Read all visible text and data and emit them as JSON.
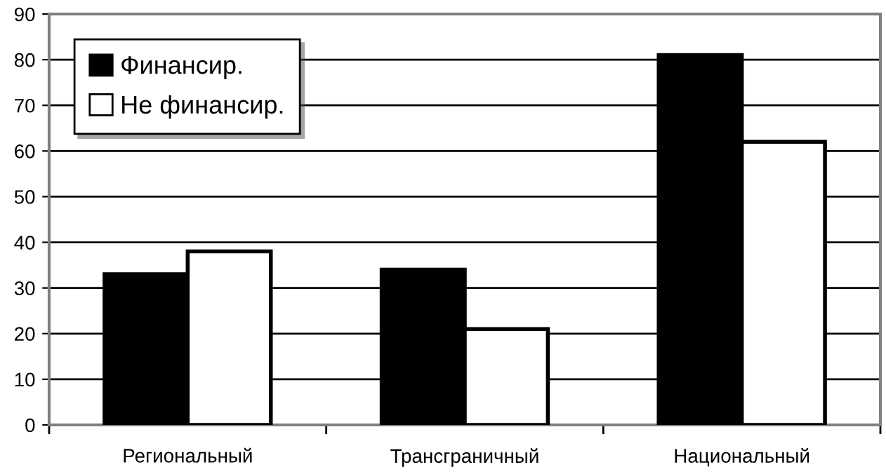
{
  "chart_data": {
    "type": "bar",
    "categories": [
      "Региональный",
      "Трансграничный",
      "Национальный"
    ],
    "series": [
      {
        "name": "Финансир.",
        "color": "#000000",
        "values": [
          33,
          34,
          81
        ]
      },
      {
        "name": "Не финансир.",
        "color": "#ffffff",
        "values": [
          38,
          21,
          62
        ]
      }
    ],
    "ylim": [
      0,
      90
    ],
    "yticks": [
      0,
      10,
      20,
      30,
      40,
      50,
      60,
      70,
      80,
      90
    ],
    "grid": "y",
    "legend": "top left"
  }
}
